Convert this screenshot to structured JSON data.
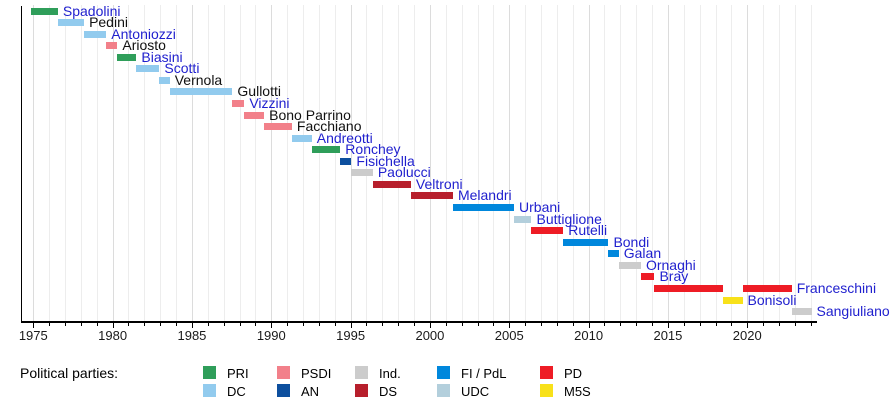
{
  "chart_data": {
    "type": "bar",
    "subtype": "gantt-timeline",
    "description": "Timeline of Italian culture ministers colored by political party",
    "x_axis": {
      "min": 1974.25,
      "max": 2024.35,
      "major_ticks": [
        1975,
        1980,
        1985,
        1990,
        1995,
        2000,
        2005,
        2010,
        2015,
        2020
      ],
      "minor_tick_interval": 1,
      "gridlines": true
    },
    "party_colors": {
      "PRI": "#2f9e5a",
      "DC": "#92cbee",
      "PSDI": "#f2808a",
      "AN": "#0d4f9e",
      "Ind.": "#cccccc",
      "DS": "#b71f2c",
      "FI / PdL": "#0087dc",
      "UDC": "#b3cfdc",
      "PD": "#ee1c25",
      "M5S": "#f8e11a"
    },
    "label_link_color": "#1f1fce",
    "label_plain_color": "#111111",
    "ministers": [
      {
        "name": "Spadolini",
        "party": "PRI",
        "linked": true,
        "terms": [
          [
            1974.85,
            1976.55
          ]
        ]
      },
      {
        "name": "Pedini",
        "party": "DC",
        "linked": false,
        "terms": [
          [
            1976.55,
            1978.2
          ]
        ]
      },
      {
        "name": "Antoniozzi",
        "party": "DC",
        "linked": true,
        "terms": [
          [
            1978.2,
            1979.6
          ]
        ]
      },
      {
        "name": "Ariosto",
        "party": "PSDI",
        "linked": false,
        "terms": [
          [
            1979.6,
            1980.3
          ]
        ]
      },
      {
        "name": "Biasini",
        "party": "PRI",
        "linked": true,
        "terms": [
          [
            1980.3,
            1981.5
          ]
        ]
      },
      {
        "name": "Scotti",
        "party": "DC",
        "linked": true,
        "terms": [
          [
            1981.5,
            1982.95
          ]
        ]
      },
      {
        "name": "Vernola",
        "party": "DC",
        "linked": false,
        "terms": [
          [
            1982.95,
            1983.6
          ]
        ]
      },
      {
        "name": "Gullotti",
        "party": "DC",
        "linked": false,
        "terms": [
          [
            1983.6,
            1987.55
          ]
        ]
      },
      {
        "name": "Vizzini",
        "party": "PSDI",
        "linked": true,
        "terms": [
          [
            1987.55,
            1988.3
          ]
        ]
      },
      {
        "name": "Bono Parrino",
        "party": "PSDI",
        "linked": false,
        "terms": [
          [
            1988.3,
            1989.55
          ]
        ]
      },
      {
        "name": "Facchiano",
        "party": "PSDI",
        "linked": false,
        "terms": [
          [
            1989.55,
            1991.3
          ]
        ]
      },
      {
        "name": "Andreotti",
        "party": "DC",
        "linked": true,
        "terms": [
          [
            1991.3,
            1992.55
          ]
        ]
      },
      {
        "name": "Ronchey",
        "party": "PRI",
        "linked": true,
        "terms": [
          [
            1992.55,
            1994.35
          ]
        ]
      },
      {
        "name": "Fisichella",
        "party": "AN",
        "linked": true,
        "terms": [
          [
            1994.35,
            1995.05
          ]
        ]
      },
      {
        "name": "Paolucci",
        "party": "Ind.",
        "linked": true,
        "terms": [
          [
            1995.05,
            1996.4
          ]
        ]
      },
      {
        "name": "Veltroni",
        "party": "DS",
        "linked": true,
        "terms": [
          [
            1996.4,
            1998.8
          ]
        ]
      },
      {
        "name": "Melandri",
        "party": "DS",
        "linked": true,
        "terms": [
          [
            1998.8,
            2001.45
          ]
        ]
      },
      {
        "name": "Urbani",
        "party": "FI / PdL",
        "linked": true,
        "terms": [
          [
            2001.45,
            2005.3
          ]
        ]
      },
      {
        "name": "Buttiglione",
        "party": "UDC",
        "linked": true,
        "terms": [
          [
            2005.3,
            2006.4
          ]
        ]
      },
      {
        "name": "Rutelli",
        "party": "PD",
        "linked": true,
        "terms": [
          [
            2006.4,
            2008.4
          ]
        ]
      },
      {
        "name": "Bondi",
        "party": "FI / PdL",
        "linked": true,
        "terms": [
          [
            2008.4,
            2011.25
          ]
        ]
      },
      {
        "name": "Galan",
        "party": "FI / PdL",
        "linked": true,
        "terms": [
          [
            2011.25,
            2011.9
          ]
        ]
      },
      {
        "name": "Ornaghi",
        "party": "Ind.",
        "linked": true,
        "terms": [
          [
            2011.9,
            2013.3
          ]
        ]
      },
      {
        "name": "Bray",
        "party": "PD",
        "linked": true,
        "terms": [
          [
            2013.3,
            2014.15
          ]
        ]
      },
      {
        "name": "Franceschini",
        "party": "PD",
        "linked": true,
        "terms": [
          [
            2014.15,
            2018.45
          ],
          [
            2019.7,
            2022.8
          ]
        ]
      },
      {
        "name": "Bonisoli",
        "party": "M5S",
        "linked": true,
        "terms": [
          [
            2018.45,
            2019.7
          ]
        ]
      },
      {
        "name": "Sangiuliano",
        "party": "Ind.",
        "linked": true,
        "terms": [
          [
            2022.8,
            2024.05
          ]
        ]
      }
    ]
  },
  "legend": {
    "label": "Political parties:",
    "columns": [
      [
        "PRI",
        "DC"
      ],
      [
        "PSDI",
        "AN"
      ],
      [
        "Ind.",
        "DS"
      ],
      [
        "FI / PdL",
        "UDC"
      ],
      [
        "PD",
        "M5S"
      ]
    ]
  }
}
